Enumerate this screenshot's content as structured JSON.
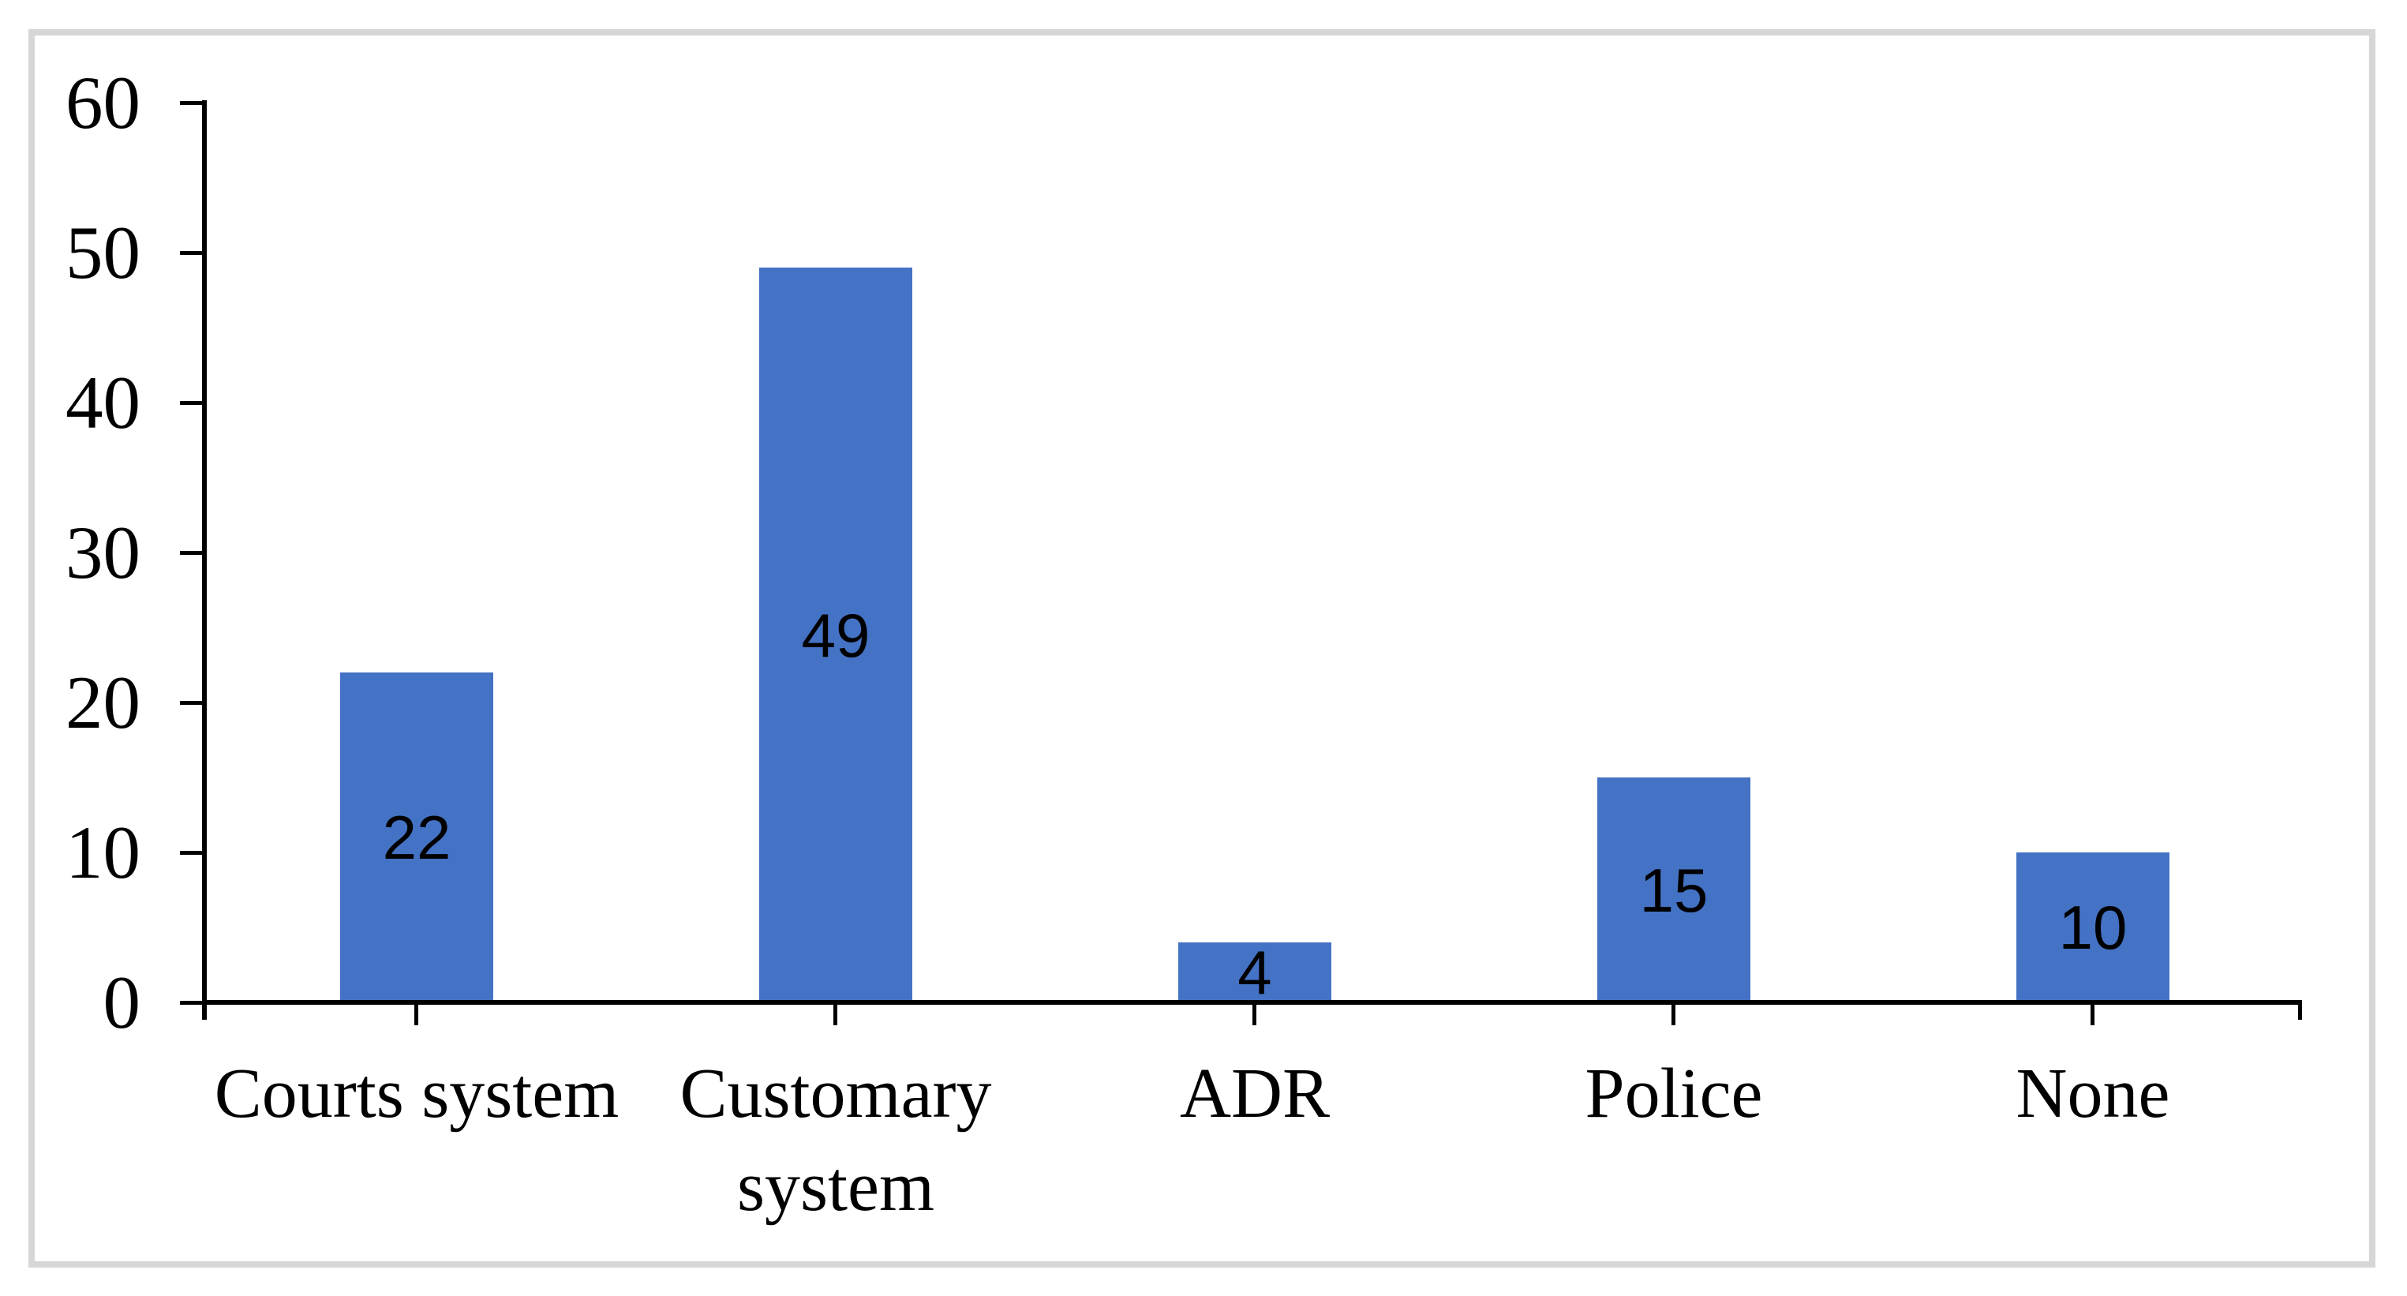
{
  "figure": {
    "background_color": "#ffffff",
    "border_color": "#d6d6d6"
  },
  "chart_data": {
    "type": "bar",
    "title": "",
    "xlabel": "",
    "ylabel": "",
    "categories": [
      "Courts system",
      "Customary system",
      "ADR",
      "Police",
      "None"
    ],
    "category_label_lines": [
      [
        "Courts system"
      ],
      [
        "Customary",
        "system"
      ],
      [
        "ADR"
      ],
      [
        "Police"
      ],
      [
        "None"
      ]
    ],
    "values": [
      22,
      49,
      4,
      15,
      10
    ],
    "data_labels": [
      "22",
      "49",
      "4",
      "15",
      "10"
    ],
    "data_label_position": "center",
    "ylim": [
      0,
      60
    ],
    "ytick_interval": 10,
    "ytick_labels": [
      "0",
      "10",
      "20",
      "30",
      "40",
      "50",
      "60"
    ],
    "grid": false,
    "legend": false,
    "bar_color": "#4472C4",
    "axis_color": "#000000",
    "text_color": "#000000"
  }
}
